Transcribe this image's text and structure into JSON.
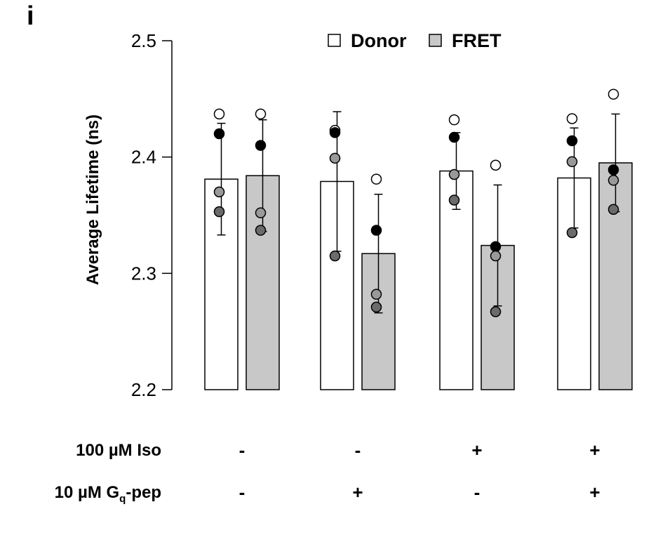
{
  "panel_label": "i",
  "chart_data": {
    "type": "bar",
    "ylabel": "Average Lifetime (ns)",
    "ylim": [
      2.2,
      2.5
    ],
    "yticks": [
      "2.2",
      "2.3",
      "2.4",
      "2.5"
    ],
    "grid": false,
    "legend_position": "top",
    "series": [
      {
        "name": "Donor",
        "fill": "#ffffff",
        "values": [
          2.381,
          2.379,
          2.388,
          2.382
        ],
        "error": [
          0.048,
          0.06,
          0.033,
          0.043
        ],
        "points": [
          [
            2.437,
            2.42,
            2.37,
            2.353
          ],
          [
            2.423,
            2.421,
            2.399,
            2.315
          ],
          [
            2.432,
            2.417,
            2.385,
            2.363
          ],
          [
            2.433,
            2.414,
            2.396,
            2.335
          ]
        ]
      },
      {
        "name": "FRET",
        "fill": "#c8c8c8",
        "values": [
          2.384,
          2.317,
          2.324,
          2.395
        ],
        "error": [
          0.048,
          0.051,
          0.052,
          0.042
        ],
        "points": [
          [
            2.437,
            2.41,
            2.352,
            2.337
          ],
          [
            2.381,
            2.337,
            2.282,
            2.271
          ],
          [
            2.393,
            2.323,
            2.315,
            2.267
          ],
          [
            2.454,
            2.389,
            2.38,
            2.355
          ]
        ]
      }
    ],
    "point_colors": [
      "#ffffff",
      "#000000",
      "#999999",
      "#6b6b6b"
    ],
    "groups": 4
  },
  "conditions": {
    "rows": [
      {
        "label": "100 µM Iso",
        "values": [
          "-",
          "-",
          "+",
          "+"
        ]
      },
      {
        "label_main": "10 µM G",
        "label_sub": "q",
        "label_tail": "-pep",
        "values": [
          "-",
          "+",
          "-",
          "+"
        ]
      }
    ]
  }
}
